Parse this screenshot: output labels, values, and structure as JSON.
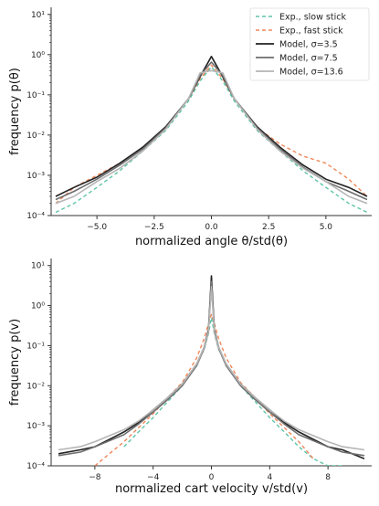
{
  "chart_data": [
    {
      "type": "line",
      "xlabel": "normalized angle θ/std(θ)",
      "ylabel": "frequency p(θ)",
      "xlim": [
        -7,
        7
      ],
      "ylim": [
        0.0001,
        15
      ],
      "yscale": "log",
      "xticks": [
        -5.0,
        -2.5,
        0.0,
        2.5,
        5.0
      ],
      "xtick_labels": [
        "−5.0",
        "−2.5",
        "0.0",
        "2.5",
        "5.0"
      ],
      "yticks": [
        0.0001,
        0.001,
        0.01,
        0.1,
        1,
        10
      ],
      "ytick_labels": [
        "10⁻⁴",
        "10⁻³",
        "10⁻²",
        "10⁻¹",
        "10⁰",
        "10¹"
      ],
      "grid": false,
      "legend": {
        "position": "top-right",
        "entries": [
          {
            "label": "Exp., slow stick",
            "color": "#5ec4a8",
            "style": "dashed"
          },
          {
            "label": "Exp., fast stick",
            "color": "#f0875a",
            "style": "dashed"
          },
          {
            "label": "Model, σ=3.5",
            "color": "#222222",
            "style": "solid"
          },
          {
            "label": "Model, σ=7.5",
            "color": "#6e6e6e",
            "style": "solid"
          },
          {
            "label": "Model, σ=13.6",
            "color": "#b5b5b5",
            "style": "solid"
          }
        ]
      },
      "series": [
        {
          "name": "Exp., slow stick",
          "color": "#5ec4a8",
          "dash": true,
          "x": [
            -6.8,
            -6,
            -5,
            -4,
            -3,
            -2,
            -1,
            -0.5,
            0,
            0.5,
            1,
            2,
            3,
            4,
            5,
            6,
            6.8
          ],
          "y": [
            0.00012,
            0.0002,
            0.0005,
            0.0013,
            0.004,
            0.013,
            0.07,
            0.22,
            0.5,
            0.22,
            0.07,
            0.013,
            0.004,
            0.0013,
            0.0005,
            0.0002,
            0.00012
          ]
        },
        {
          "name": "Exp., fast stick",
          "color": "#f0875a",
          "dash": true,
          "x": [
            -6.8,
            -6,
            -5,
            -4,
            -3,
            -2,
            -1,
            -0.5,
            0,
            0.5,
            1,
            2,
            3,
            4,
            5,
            6,
            6.8
          ],
          "y": [
            0.0002,
            0.0005,
            0.001,
            0.002,
            0.005,
            0.015,
            0.08,
            0.25,
            0.55,
            0.25,
            0.08,
            0.015,
            0.006,
            0.003,
            0.002,
            0.0008,
            0.0003
          ]
        },
        {
          "name": "Model, σ=3.5",
          "color": "#222222",
          "dash": false,
          "x": [
            -6.8,
            -6,
            -5,
            -4,
            -3,
            -2,
            -1,
            -0.5,
            0,
            0.5,
            1,
            2,
            3,
            4,
            5,
            6,
            6.8
          ],
          "y": [
            0.0003,
            0.0005,
            0.0009,
            0.002,
            0.005,
            0.016,
            0.08,
            0.28,
            0.9,
            0.28,
            0.08,
            0.016,
            0.005,
            0.0018,
            0.0008,
            0.0005,
            0.0003
          ]
        },
        {
          "name": "Model, σ=7.5",
          "color": "#6e6e6e",
          "dash": false,
          "x": [
            -6.8,
            -6,
            -5,
            -4,
            -3,
            -2,
            -1,
            -0.5,
            0,
            0.5,
            1,
            2,
            3,
            4,
            5,
            6,
            6.8
          ],
          "y": [
            0.00025,
            0.0004,
            0.0008,
            0.0018,
            0.0045,
            0.015,
            0.08,
            0.3,
            0.65,
            0.3,
            0.08,
            0.015,
            0.0045,
            0.0016,
            0.0007,
            0.0004,
            0.00025
          ]
        },
        {
          "name": "Model, σ=13.6",
          "color": "#b5b5b5",
          "dash": false,
          "x": [
            -6.8,
            -6,
            -5,
            -4,
            -3,
            -2,
            -1,
            -0.5,
            0,
            0.5,
            1,
            2,
            3,
            4,
            5,
            6,
            6.8
          ],
          "y": [
            0.0002,
            0.0003,
            0.0007,
            0.0015,
            0.004,
            0.014,
            0.08,
            0.35,
            0.4,
            0.35,
            0.08,
            0.014,
            0.004,
            0.0015,
            0.0007,
            0.0003,
            0.0002
          ]
        }
      ]
    },
    {
      "type": "line",
      "xlabel": "normalized cart velocity v/std(v)",
      "ylabel": "frequency p(v)",
      "xlim": [
        -11,
        11
      ],
      "ylim": [
        0.0001,
        15
      ],
      "yscale": "log",
      "xticks": [
        -8,
        -4,
        0,
        4,
        8
      ],
      "xtick_labels": [
        "−8",
        "−4",
        "0",
        "4",
        "8"
      ],
      "yticks": [
        0.0001,
        0.001,
        0.01,
        0.1,
        1,
        10
      ],
      "ytick_labels": [
        "10⁻⁴",
        "10⁻³",
        "10⁻²",
        "10⁻¹",
        "10⁰",
        "10¹"
      ],
      "grid": false,
      "series": [
        {
          "name": "Exp., slow stick",
          "color": "#5ec4a8",
          "dash": true,
          "x": [
            -6,
            -5,
            -4,
            -3,
            -2,
            -1,
            -0.5,
            -0.2,
            0,
            0.2,
            0.5,
            1,
            2,
            3,
            4,
            5,
            6,
            7,
            8,
            9
          ],
          "y": [
            0.0003,
            0.0007,
            0.0016,
            0.004,
            0.01,
            0.035,
            0.08,
            0.2,
            0.5,
            0.2,
            0.08,
            0.035,
            0.01,
            0.004,
            0.0016,
            0.0007,
            0.0003,
            0.00015,
            0.0001,
            0.0001
          ]
        },
        {
          "name": "Exp., fast stick",
          "color": "#f0875a",
          "dash": true,
          "x": [
            -8,
            -7,
            -6,
            -5,
            -4,
            -3,
            -2,
            -1,
            -0.5,
            -0.2,
            0,
            0.2,
            0.5,
            1,
            2,
            3,
            4,
            5,
            6,
            7
          ],
          "y": [
            0.0001,
            0.0002,
            0.0004,
            0.0009,
            0.002,
            0.005,
            0.012,
            0.05,
            0.15,
            0.35,
            0.6,
            0.35,
            0.15,
            0.05,
            0.012,
            0.005,
            0.002,
            0.0009,
            0.0004,
            0.00015
          ]
        },
        {
          "name": "Model, σ=3.5",
          "color": "#222222",
          "dash": false,
          "x": [
            -10.5,
            -9,
            -8,
            -6,
            -5,
            -4,
            -3,
            -2,
            -1,
            -0.5,
            -0.2,
            0,
            0.2,
            0.5,
            1,
            2,
            3,
            4,
            5,
            6,
            8,
            9,
            10.5
          ],
          "y": [
            0.0002,
            0.00025,
            0.0003,
            0.0007,
            0.0012,
            0.0025,
            0.005,
            0.011,
            0.035,
            0.09,
            0.25,
            5.5,
            0.25,
            0.09,
            0.035,
            0.011,
            0.005,
            0.0025,
            0.0012,
            0.0007,
            0.0003,
            0.00025,
            0.00015
          ]
        },
        {
          "name": "Model, σ=7.5",
          "color": "#6e6e6e",
          "dash": false,
          "x": [
            -10.5,
            -9,
            -8,
            -6,
            -5,
            -4,
            -3,
            -2,
            -1,
            -0.5,
            -0.2,
            0,
            0.2,
            0.5,
            1,
            2,
            3,
            4,
            5,
            6,
            8,
            9,
            10.5
          ],
          "y": [
            0.00018,
            0.00022,
            0.0003,
            0.0006,
            0.0011,
            0.0022,
            0.0045,
            0.01,
            0.032,
            0.085,
            0.22,
            4,
            0.22,
            0.085,
            0.032,
            0.01,
            0.0045,
            0.0022,
            0.0011,
            0.0006,
            0.0003,
            0.00022,
            0.00018
          ]
        },
        {
          "name": "Model, σ=13.6",
          "color": "#b5b5b5",
          "dash": false,
          "x": [
            -10.5,
            -9,
            -8,
            -6,
            -5,
            -4,
            -3,
            -2,
            -1,
            -0.5,
            -0.2,
            0,
            0.2,
            0.5,
            1,
            2,
            3,
            4,
            5,
            6,
            8,
            9,
            10.5
          ],
          "y": [
            0.00025,
            0.0003,
            0.0004,
            0.0008,
            0.0013,
            0.0025,
            0.005,
            0.011,
            0.035,
            0.09,
            0.22,
            3,
            0.22,
            0.09,
            0.035,
            0.011,
            0.005,
            0.0025,
            0.0013,
            0.0008,
            0.0004,
            0.0003,
            0.00025
          ]
        }
      ]
    }
  ]
}
